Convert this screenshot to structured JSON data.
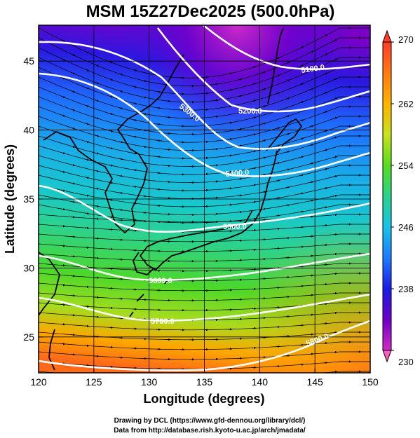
{
  "title": "MSM 15Z27Dec2025 (500.0hPa)",
  "xlabel": "Longitude (degrees)",
  "ylabel": "Latitude  (degrees)",
  "credits": [
    "Drawing by DCL (https://www.gfd-dennou.org/library/dcl/)",
    "Data from http://database.rish.kyoto-u.ac.jp/arch/jmadata/"
  ],
  "map": {
    "lon_range": [
      120,
      150
    ],
    "lat_range": [
      22.4,
      47.6
    ],
    "x_ticks": [
      "120",
      "125",
      "130",
      "135",
      "140",
      "145",
      "150"
    ],
    "y_ticks": [
      "25",
      "30",
      "35",
      "40",
      "45"
    ],
    "grid_lon": [
      120,
      125,
      130,
      135,
      140,
      145,
      150
    ],
    "grid_lat": [
      25,
      30,
      35,
      40,
      45
    ],
    "colors": {
      "coast": "#000000",
      "contour": "#ffffff",
      "grid": "#000000",
      "arrow": "#000000"
    }
  },
  "colorbar": {
    "ticks": [
      "270",
      "262",
      "254",
      "246",
      "238",
      "230"
    ],
    "min": 230,
    "max": 270,
    "colormap": [
      "#d22bc4",
      "#6d00c8",
      "#1a1ae6",
      "#1e7cff",
      "#18c3e6",
      "#2cd28e",
      "#58dc1e",
      "#c9e21c",
      "#ffb400",
      "#ff7a14",
      "#ff3c28"
    ]
  },
  "contours": [
    {
      "label": "5100.0"
    },
    {
      "label": "5200.0"
    },
    {
      "label": "5300.0"
    },
    {
      "label": "5400.0"
    },
    {
      "label": "5500.0"
    },
    {
      "label": "5600.0"
    },
    {
      "label": "5700.0"
    },
    {
      "label": "5800.0"
    }
  ]
}
